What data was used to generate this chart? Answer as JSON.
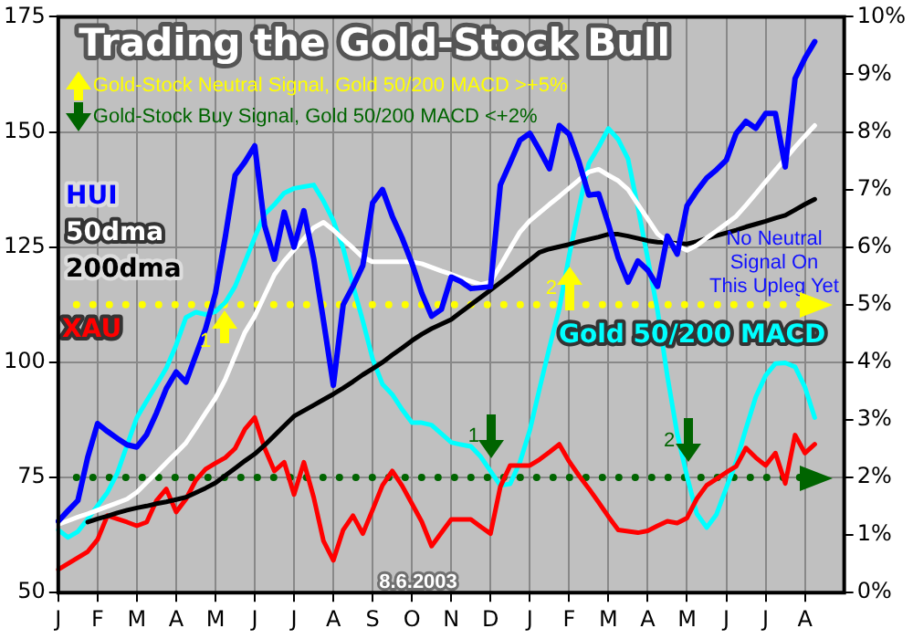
{
  "chart_data": {
    "type": "line",
    "title": "Trading the Gold-Stock Bull",
    "categories": [
      "J",
      null,
      null,
      null,
      "F",
      null,
      null,
      null,
      "M",
      null,
      null,
      null,
      "A",
      null,
      null,
      null,
      "M",
      null,
      null,
      null,
      "J",
      null,
      null,
      null,
      "J",
      null,
      null,
      null,
      "A",
      null,
      null,
      null,
      "S",
      null,
      null,
      null,
      "O",
      null,
      null,
      null,
      "N",
      null,
      null,
      null,
      "D",
      null,
      null,
      null,
      "J",
      null,
      null,
      null,
      "F",
      null,
      null,
      null,
      "M",
      null,
      null,
      null,
      "A",
      null,
      null,
      null,
      "M",
      null,
      null,
      null,
      "J",
      null,
      null,
      null,
      "J",
      null,
      null,
      null,
      "A",
      null,
      null,
      null,
      null
    ],
    "ylim": [
      50,
      175
    ],
    "yticks": [
      50,
      75,
      100,
      125,
      150,
      175
    ],
    "y2lim": [
      0,
      10
    ],
    "y2ticks": [
      {
        "value": 0,
        "label": "0%"
      },
      {
        "value": 1,
        "label": "1%"
      },
      {
        "value": 2,
        "label": "2%"
      },
      {
        "value": 3,
        "label": "3%"
      },
      {
        "value": 4,
        "label": "4%"
      },
      {
        "value": 5,
        "label": "5%"
      },
      {
        "value": 6,
        "label": "6%"
      },
      {
        "value": 7,
        "label": "7%"
      },
      {
        "value": 8,
        "label": "8%"
      },
      {
        "value": 9,
        "label": "9%"
      },
      {
        "value": 10,
        "label": "10%"
      }
    ],
    "grid": true,
    "legend": "top left",
    "series": [
      {
        "name": "HUI",
        "color": "#0000ff",
        "values": [
          65.5,
          67.8,
          70,
          79.4,
          86.7,
          85,
          83.5,
          82.1,
          81.6,
          84.3,
          89,
          94.3,
          97.9,
          95.7,
          101.5,
          107.3,
          115,
          127.2,
          140.6,
          143.5,
          147,
          129.7,
          122.4,
          132.6,
          125,
          132.9,
          122.5,
          109,
          95,
          112.5,
          116.5,
          121,
          134.6,
          137.5,
          131.7,
          127,
          121.5,
          115,
          110,
          111.5,
          118.5,
          117.5,
          116,
          116.2,
          116.4,
          138.5,
          143.3,
          148.2,
          149.7,
          146,
          142,
          151.4,
          149.5,
          143.5,
          136.3,
          136.6,
          130,
          122.7,
          117.4,
          122,
          120,
          116.5,
          127.4,
          123.5,
          134,
          137.2,
          140,
          141.8,
          143.9,
          149.7,
          152.3,
          150.8,
          154,
          154,
          142.4,
          161.6,
          166,
          169.6,
          null,
          null,
          null
        ]
      },
      {
        "name": "50dma",
        "color": "#ffffff",
        "values": [
          64.8,
          65.6,
          66.4,
          67.1,
          67.9,
          68.7,
          69.5,
          70.3,
          71.8,
          73.9,
          76,
          78.2,
          80.3,
          82.5,
          85.7,
          89,
          92.2,
          96.3,
          101.4,
          106.5,
          110,
          114.5,
          119,
          122,
          124.4,
          126.8,
          129.2,
          130.4,
          128.7,
          126.7,
          124.8,
          122.8,
          121.8,
          121.8,
          121.8,
          121.8,
          121.8,
          121.4,
          120.6,
          119.8,
          119.1,
          118.3,
          117.6,
          116.9,
          117.4,
          121,
          124.7,
          128.3,
          130.7,
          132.5,
          134.3,
          136,
          137.8,
          139.6,
          141.3,
          141.9,
          140.6,
          139.4,
          137.5,
          134.3,
          131.1,
          127.9,
          126.2,
          125.3,
          124.3,
          125.4,
          127,
          128.5,
          130.1,
          131.7,
          134.1,
          136.6,
          139.2,
          141.7,
          144.2,
          146.7,
          149.1,
          151.4,
          null,
          null,
          null
        ]
      },
      {
        "name": "200dma",
        "color": "#000000",
        "values": [
          null,
          null,
          null,
          65.3,
          66,
          66.6,
          67.3,
          67.9,
          68.4,
          68.8,
          69.3,
          69.7,
          70.2,
          70.7,
          71.7,
          72.7,
          73.8,
          75.4,
          77,
          78.6,
          80.1,
          82,
          84.1,
          86.2,
          88.3,
          89.5,
          90.7,
          91.9,
          93.1,
          94.4,
          95.8,
          97.3,
          98.6,
          100,
          101.6,
          103.1,
          104.7,
          106.1,
          107.3,
          108.3,
          109.3,
          110.9,
          112.5,
          114.1,
          115.7,
          117.3,
          118.9,
          120.6,
          122.2,
          123.9,
          124.6,
          125.1,
          125.6,
          126.2,
          126.7,
          127.2,
          127.8,
          127.8,
          127.4,
          126.9,
          126.4,
          126.1,
          126,
          125.8,
          125.7,
          126.2,
          126.9,
          127.5,
          128.1,
          128.7,
          129.4,
          130,
          130.6,
          131.3,
          131.9,
          133.1,
          134.3,
          135.4,
          null,
          null,
          null
        ]
      },
      {
        "name": "XAU",
        "color": "#ff0000",
        "values": [
          55,
          56.3,
          57.6,
          58.9,
          61.5,
          66.7,
          66,
          65.3,
          64.5,
          65.3,
          70,
          72.5,
          67.5,
          70.3,
          74.4,
          76.8,
          78.1,
          79.3,
          81.3,
          85.5,
          88,
          81.4,
          76.4,
          78.3,
          71.3,
          78.3,
          70.7,
          61.2,
          57,
          63.6,
          66.7,
          62.8,
          68,
          73.3,
          76.4,
          73.2,
          69.3,
          65.4,
          60.1,
          63,
          65.9,
          65.9,
          65.9,
          64.3,
          62.8,
          73,
          77.6,
          77.6,
          77.6,
          78.9,
          80.5,
          82.2,
          78.5,
          75.4,
          72.6,
          69.6,
          66.5,
          63.6,
          63.3,
          63,
          63.4,
          64.5,
          65.5,
          65.1,
          66.2,
          70.4,
          73.3,
          74.7,
          76.1,
          77.4,
          81.4,
          79.3,
          77.6,
          80.3,
          73.7,
          84.2,
          80.3,
          82.2,
          null,
          null,
          null
        ]
      },
      {
        "name": "Gold 50/200 MACD",
        "color": "#00ffff",
        "axis": "y2",
        "values": [
          1.09,
          0.96,
          1.06,
          1.28,
          1.51,
          1.74,
          2.07,
          2.56,
          3.04,
          3.33,
          3.61,
          3.9,
          4.3,
          4.78,
          4.87,
          4.83,
          4.88,
          5.04,
          5.32,
          5.74,
          6.17,
          6.57,
          6.74,
          6.94,
          7.02,
          7.05,
          7.08,
          6.8,
          6.46,
          5.98,
          5.33,
          4.72,
          4.06,
          3.62,
          3.44,
          3.18,
          2.95,
          2.95,
          2.91,
          2.76,
          2.61,
          2.57,
          2.54,
          2.36,
          2.11,
          1.86,
          1.89,
          2.27,
          2.82,
          3.55,
          4.26,
          4.93,
          5.85,
          6.68,
          7.45,
          7.74,
          8.06,
          7.87,
          7.53,
          6.69,
          5.8,
          4.9,
          3.76,
          2.76,
          2.02,
          1.37,
          1.13,
          1.36,
          1.82,
          2.27,
          2.85,
          3.4,
          3.77,
          3.98,
          3.99,
          3.92,
          3.57,
          3.04,
          null,
          null,
          null
        ]
      }
    ],
    "ref_lines": [
      {
        "axis": "y2",
        "value": 5,
        "label": "Gold-Stock Neutral Signal, Gold 50/200 MACD >+5%",
        "color": "#ffff00",
        "line_style": "dotted"
      },
      {
        "axis": "y2",
        "value": 2,
        "label": "Gold-Stock Buy Signal, Gold 50/200 MACD <+2%",
        "color": "#006400",
        "line_style": "dotted"
      }
    ],
    "annotations": [
      "1",
      "2",
      "1",
      "2",
      "No Neutral Signal On This Upleg Yet",
      "8.6.2003"
    ]
  }
}
